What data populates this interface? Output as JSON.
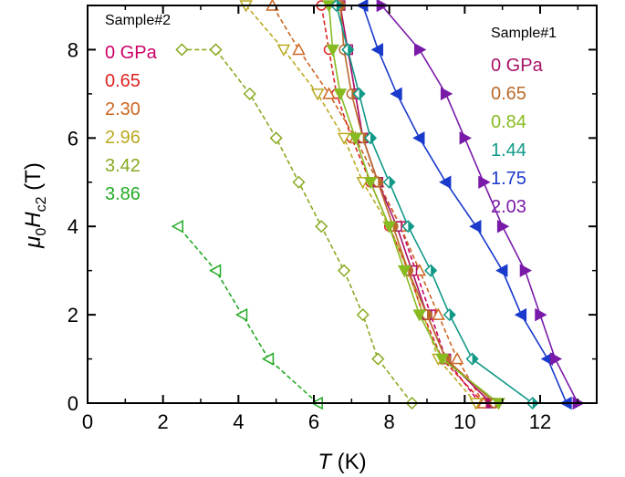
{
  "chart_data": {
    "type": "scatter",
    "x_axis": {
      "label_italic": "T",
      "label_unit": " (K)",
      "range": [
        0,
        13.5
      ],
      "ticks": [
        0,
        2,
        4,
        6,
        8,
        10,
        12
      ]
    },
    "y_axis": {
      "label_mu": "μ",
      "label_sub0": "0",
      "label_H": "H",
      "label_subc2": "c2",
      "label_unit": " (T)",
      "range": [
        0,
        9
      ],
      "ticks": [
        0,
        2,
        4,
        6,
        8
      ]
    },
    "legends": [
      {
        "title": "Sample#2",
        "position": "top-left",
        "entries": [
          {
            "label": "0 GPa",
            "color": "#cc0066"
          },
          {
            "label": "0.65",
            "color": "#dd2222"
          },
          {
            "label": "2.30",
            "color": "#cc6622"
          },
          {
            "label": "2.96",
            "color": "#bbaa22"
          },
          {
            "label": "3.42",
            "color": "#88aa22"
          },
          {
            "label": "3.86",
            "color": "#22aa22"
          }
        ]
      },
      {
        "title": "Sample#1",
        "position": "top-right",
        "entries": [
          {
            "label": "0 GPa",
            "color": "#aa1166"
          },
          {
            "label": "0.65",
            "color": "#b86a2a"
          },
          {
            "label": "0.84",
            "color": "#88bb22"
          },
          {
            "label": "1.44",
            "color": "#119988"
          },
          {
            "label": "1.75",
            "color": "#1a3acc"
          },
          {
            "label": "2.03",
            "color": "#7a1aa8"
          }
        ]
      }
    ],
    "series": [
      {
        "sample": "Sample#2",
        "pressure": "0 GPa",
        "color": "#cc0066",
        "marker": "square-open",
        "dash": true,
        "x": [
          10.4,
          9.5,
          9.1,
          8.7,
          8.3,
          7.7,
          7.3,
          7.1,
          6.9
        ],
        "y": [
          0,
          1,
          2,
          3,
          4,
          5,
          6,
          7,
          8
        ]
      },
      {
        "sample": "Sample#2",
        "pressure": "0.65",
        "color": "#dd2222",
        "marker": "circle-open",
        "dash": true,
        "x": [
          10.5,
          9.4,
          8.9,
          8.5,
          8.0,
          7.5,
          7.0,
          6.6,
          6.4,
          6.2
        ],
        "y": [
          0,
          1,
          2,
          3,
          4,
          5,
          6,
          7,
          8,
          9
        ]
      },
      {
        "sample": "Sample#2",
        "pressure": "2.30",
        "color": "#cc6622",
        "marker": "triangle-up-open",
        "dash": true,
        "x": [
          10.5,
          9.8,
          9.3,
          8.8,
          8.3,
          7.7,
          7.1,
          6.4,
          5.6,
          4.9
        ],
        "y": [
          0,
          1,
          2,
          3,
          4,
          5,
          6,
          7,
          8,
          9
        ]
      },
      {
        "sample": "Sample#2",
        "pressure": "2.96",
        "color": "#bbaa22",
        "marker": "triangle-down-open",
        "dash": true,
        "x": [
          10.3,
          9.3,
          8.9,
          8.5,
          8.0,
          7.3,
          6.8,
          6.1,
          5.2,
          4.2
        ],
        "y": [
          0,
          1,
          2,
          3,
          4,
          5,
          6,
          7,
          8,
          9
        ]
      },
      {
        "sample": "Sample#2",
        "pressure": "3.42",
        "color": "#88aa22",
        "marker": "diamond-open",
        "dash": true,
        "x": [
          8.6,
          7.7,
          7.3,
          6.8,
          6.2,
          5.6,
          5.0,
          4.3,
          3.4,
          2.5
        ],
        "y": [
          0,
          1,
          2,
          3,
          4,
          5,
          6,
          7,
          8,
          8
        ]
      },
      {
        "sample": "Sample#2",
        "pressure": "3.86",
        "color": "#22aa22",
        "marker": "triangle-left-open",
        "dash": true,
        "x": [
          6.1,
          4.8,
          4.1,
          3.4,
          2.4
        ],
        "y": [
          0,
          1,
          2,
          3,
          4
        ]
      },
      {
        "sample": "Sample#1",
        "pressure": "0 GPa",
        "color": "#aa1166",
        "marker": "square-half",
        "dash": false,
        "x": [
          10.7,
          9.5,
          9.0,
          8.6,
          8.2,
          7.7,
          7.3,
          7.1,
          6.9,
          6.7
        ],
        "y": [
          0,
          1,
          2,
          3,
          4,
          5,
          6,
          7,
          8,
          9
        ]
      },
      {
        "sample": "Sample#1",
        "pressure": "0.65",
        "color": "#b86a2a",
        "marker": "circle-half",
        "dash": false,
        "x": [
          10.8,
          9.5,
          9.0,
          8.5,
          8.1,
          7.7,
          7.3,
          7.0,
          6.8,
          6.7
        ],
        "y": [
          0,
          1,
          2,
          3,
          4,
          5,
          6,
          7,
          8,
          9
        ]
      },
      {
        "sample": "Sample#1",
        "pressure": "0.84",
        "color": "#88bb22",
        "marker": "triangle-down-filled",
        "dash": false,
        "x": [
          10.9,
          9.4,
          8.8,
          8.4,
          8.0,
          7.5,
          7.1,
          6.7,
          6.5,
          6.4
        ],
        "y": [
          0,
          1,
          2,
          3,
          4,
          5,
          6,
          7,
          8,
          9
        ]
      },
      {
        "sample": "Sample#1",
        "pressure": "1.44",
        "color": "#119988",
        "marker": "diamond-half",
        "dash": false,
        "x": [
          11.8,
          10.2,
          9.6,
          9.1,
          8.5,
          8.0,
          7.5,
          7.2,
          6.9,
          6.6
        ],
        "y": [
          0,
          1,
          2,
          3,
          4,
          5,
          6,
          7,
          8,
          9
        ]
      },
      {
        "sample": "Sample#1",
        "pressure": "1.75",
        "color": "#1a3acc",
        "marker": "triangle-left-filled",
        "dash": false,
        "x": [
          12.7,
          12.2,
          11.5,
          11.0,
          10.3,
          9.5,
          8.8,
          8.2,
          7.7,
          7.3
        ],
        "y": [
          0,
          1,
          2,
          3,
          4,
          5,
          6,
          7,
          8,
          9
        ]
      },
      {
        "sample": "Sample#1",
        "pressure": "2.03",
        "color": "#7a1aa8",
        "marker": "triangle-right-filled",
        "dash": false,
        "x": [
          13.0,
          12.4,
          12.0,
          11.6,
          11.0,
          10.5,
          10.0,
          9.5,
          8.8,
          7.8
        ],
        "y": [
          0,
          1,
          2,
          3,
          4,
          5,
          6,
          7,
          8,
          9
        ]
      }
    ]
  }
}
